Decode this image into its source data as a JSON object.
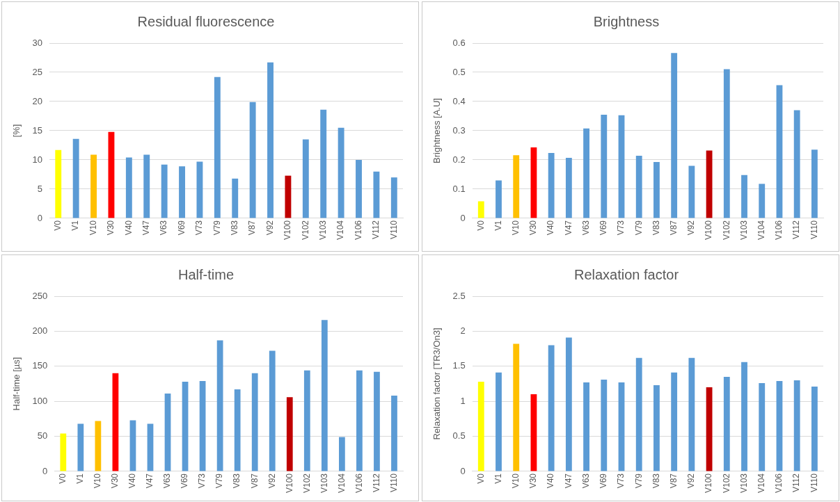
{
  "chart_data": [
    {
      "type": "bar",
      "title": "Residual fluorescence",
      "ylabel": "[%]",
      "categories": [
        "V0",
        "V1",
        "V10",
        "V30",
        "V40",
        "V47",
        "V63",
        "V69",
        "V73",
        "V79",
        "V83",
        "V87",
        "V92",
        "V100",
        "V102",
        "V103",
        "V104",
        "V106",
        "V112",
        "V110"
      ],
      "values": [
        11.7,
        13.6,
        10.9,
        14.8,
        10.4,
        10.9,
        9.2,
        8.9,
        9.7,
        24.2,
        6.8,
        19.9,
        26.7,
        7.3,
        13.5,
        18.6,
        15.5,
        10.0,
        8.0,
        7.0
      ],
      "colors": [
        "#ffff00",
        "#5b9bd5",
        "#ffc000",
        "#ff0000",
        "#5b9bd5",
        "#5b9bd5",
        "#5b9bd5",
        "#5b9bd5",
        "#5b9bd5",
        "#5b9bd5",
        "#5b9bd5",
        "#5b9bd5",
        "#5b9bd5",
        "#c00000",
        "#5b9bd5",
        "#5b9bd5",
        "#5b9bd5",
        "#5b9bd5",
        "#5b9bd5",
        "#5b9bd5"
      ],
      "ylim": [
        0,
        30
      ],
      "yticks": [
        0,
        5,
        10,
        15,
        20,
        25,
        30
      ],
      "grid": "y",
      "legend": false
    },
    {
      "type": "bar",
      "title": "Brightness",
      "ylabel": "Brightness [A.U]",
      "categories": [
        "V0",
        "V1",
        "V10",
        "V30",
        "V40",
        "V47",
        "V63",
        "V69",
        "V73",
        "V79",
        "V83",
        "V87",
        "V92",
        "V100",
        "V102",
        "V103",
        "V104",
        "V106",
        "V112",
        "V110"
      ],
      "values": [
        0.058,
        0.13,
        0.216,
        0.243,
        0.224,
        0.207,
        0.308,
        0.355,
        0.353,
        0.214,
        0.193,
        0.566,
        0.18,
        0.232,
        0.511,
        0.148,
        0.118,
        0.456,
        0.37,
        0.235
      ],
      "colors": [
        "#ffff00",
        "#5b9bd5",
        "#ffc000",
        "#ff0000",
        "#5b9bd5",
        "#5b9bd5",
        "#5b9bd5",
        "#5b9bd5",
        "#5b9bd5",
        "#5b9bd5",
        "#5b9bd5",
        "#5b9bd5",
        "#5b9bd5",
        "#c00000",
        "#5b9bd5",
        "#5b9bd5",
        "#5b9bd5",
        "#5b9bd5",
        "#5b9bd5",
        "#5b9bd5"
      ],
      "ylim": [
        0,
        0.6
      ],
      "yticks": [
        0,
        0.1,
        0.2,
        0.3,
        0.4,
        0.5,
        0.6
      ],
      "grid": "y",
      "legend": false
    },
    {
      "type": "bar",
      "title": "Half-time",
      "ylabel": "Half-time [µs]",
      "categories": [
        "V0",
        "V1",
        "V10",
        "V30",
        "V40",
        "V47",
        "V63",
        "V69",
        "V73",
        "V79",
        "V83",
        "V87",
        "V92",
        "V100",
        "V102",
        "V103",
        "V104",
        "V106",
        "V112",
        "V110"
      ],
      "values": [
        54,
        68,
        72,
        140,
        73,
        68,
        111,
        128,
        129,
        187,
        117,
        140,
        172,
        106,
        144,
        216,
        49,
        144,
        142,
        108
      ],
      "colors": [
        "#ffff00",
        "#5b9bd5",
        "#ffc000",
        "#ff0000",
        "#5b9bd5",
        "#5b9bd5",
        "#5b9bd5",
        "#5b9bd5",
        "#5b9bd5",
        "#5b9bd5",
        "#5b9bd5",
        "#5b9bd5",
        "#5b9bd5",
        "#c00000",
        "#5b9bd5",
        "#5b9bd5",
        "#5b9bd5",
        "#5b9bd5",
        "#5b9bd5",
        "#5b9bd5"
      ],
      "ylim": [
        0,
        250
      ],
      "yticks": [
        0,
        50,
        100,
        150,
        200,
        250
      ],
      "grid": "y",
      "legend": false
    },
    {
      "type": "bar",
      "title": "Relaxation factor",
      "ylabel": "Relaxation factor [TR3/On3]",
      "categories": [
        "V0",
        "V1",
        "V10",
        "V30",
        "V40",
        "V47",
        "V63",
        "V69",
        "V73",
        "V79",
        "V83",
        "V87",
        "V92",
        "V100",
        "V102",
        "V103",
        "V104",
        "V106",
        "V112",
        "V110"
      ],
      "values": [
        1.28,
        1.41,
        1.82,
        1.1,
        1.8,
        1.91,
        1.27,
        1.31,
        1.27,
        1.62,
        1.23,
        1.41,
        1.62,
        1.2,
        1.35,
        1.56,
        1.26,
        1.29,
        1.3,
        1.21
      ],
      "colors": [
        "#ffff00",
        "#5b9bd5",
        "#ffc000",
        "#ff0000",
        "#5b9bd5",
        "#5b9bd5",
        "#5b9bd5",
        "#5b9bd5",
        "#5b9bd5",
        "#5b9bd5",
        "#5b9bd5",
        "#5b9bd5",
        "#5b9bd5",
        "#c00000",
        "#5b9bd5",
        "#5b9bd5",
        "#5b9bd5",
        "#5b9bd5",
        "#5b9bd5",
        "#5b9bd5"
      ],
      "ylim": [
        0,
        2.5
      ],
      "yticks": [
        0,
        0.5,
        1,
        1.5,
        2,
        2.5
      ],
      "grid": "y",
      "legend": false
    }
  ]
}
